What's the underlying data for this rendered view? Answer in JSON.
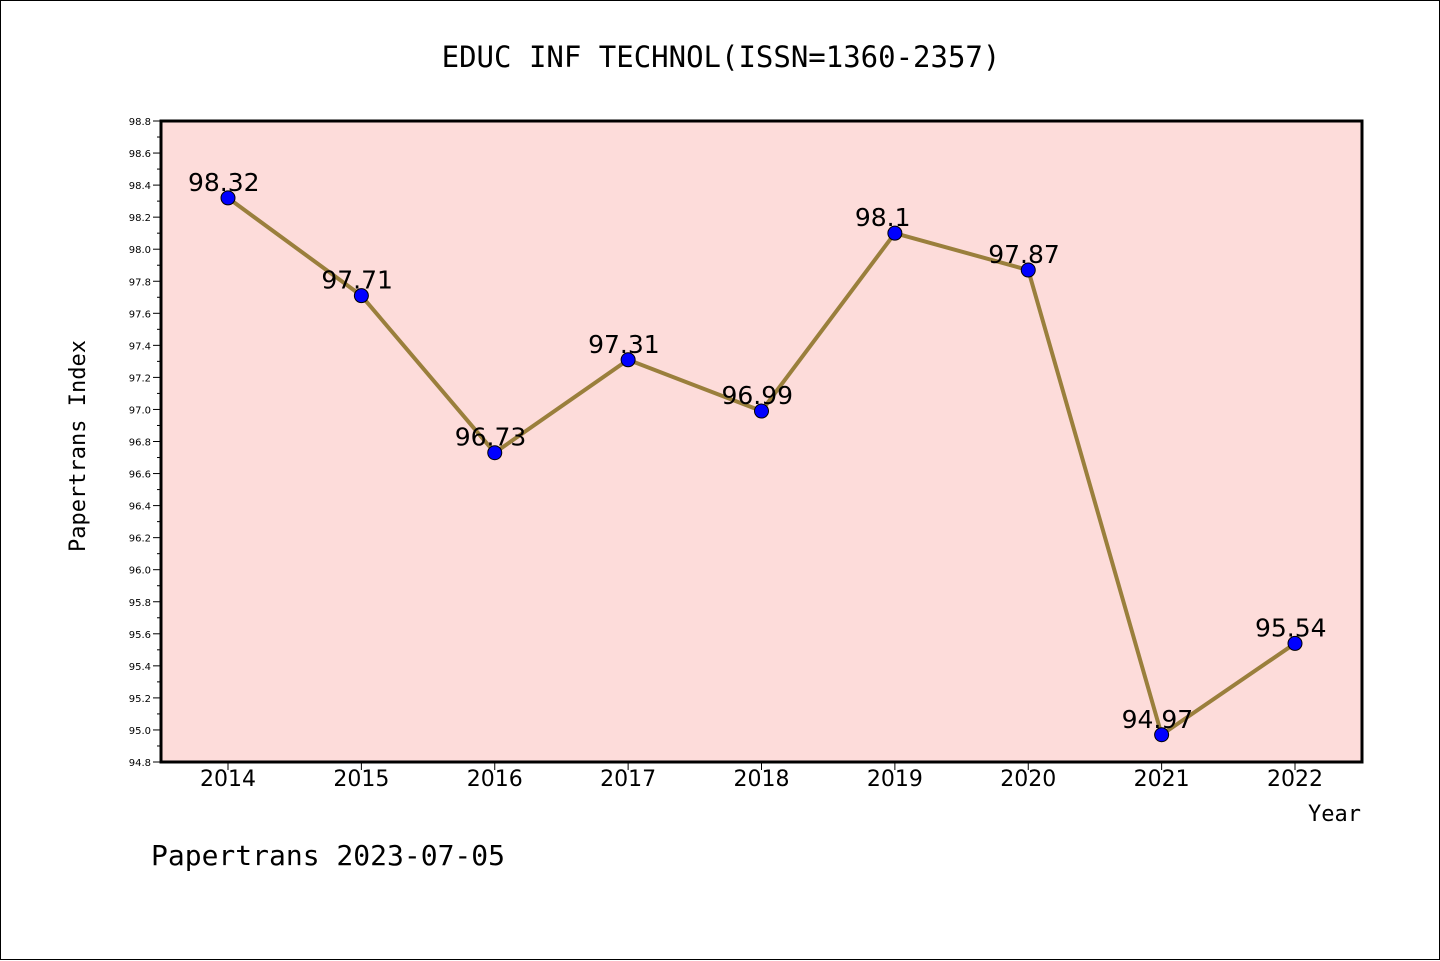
{
  "chart_data": {
    "type": "line",
    "title": "EDUC INF TECHNOL(ISSN=1360-2357)",
    "xlabel": "Year",
    "ylabel": "Papertrans Index",
    "categories": [
      "2014",
      "2015",
      "2016",
      "2017",
      "2018",
      "2019",
      "2020",
      "2021",
      "2022"
    ],
    "series": [
      {
        "values": [
          98.32,
          97.71,
          96.73,
          97.31,
          96.99,
          98.1,
          97.87,
          94.97,
          95.54
        ],
        "labels": [
          "98.32",
          "97.71",
          "96.73",
          "97.31",
          "96.99",
          "98.1",
          "97.87",
          "94.97",
          "95.54"
        ]
      }
    ],
    "ylim": [
      94.8,
      98.8
    ],
    "yticks": [
      "94.8",
      "95.0",
      "95.2",
      "95.4",
      "95.6",
      "95.8",
      "96.0",
      "96.2",
      "96.4",
      "96.6",
      "96.8",
      "97.0",
      "97.2",
      "97.4",
      "97.6",
      "97.8",
      "98.0",
      "98.2",
      "98.4",
      "98.6",
      "98.8"
    ],
    "grid": false,
    "colors": {
      "plot_background": "#fddcda",
      "line": "#9a7f3c",
      "marker": "#0000ff"
    }
  },
  "footer": "Papertrans 2023-07-05"
}
